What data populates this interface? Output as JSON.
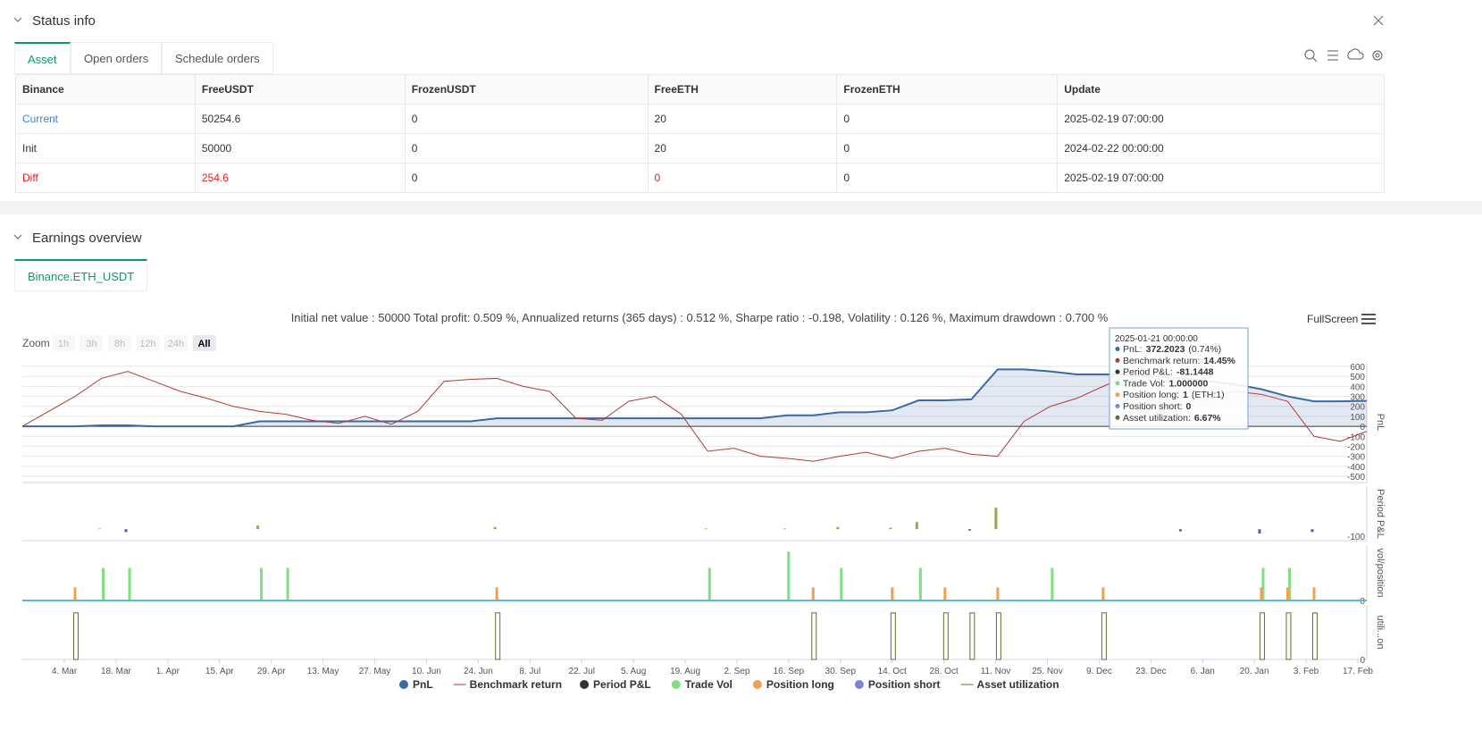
{
  "header": {
    "title": "Status info"
  },
  "tabs": [
    "Asset",
    "Open orders",
    "Schedule orders"
  ],
  "table": {
    "columns": [
      "Binance",
      "FreeUSDT",
      "FrozenUSDT",
      "FreeETH",
      "FrozenETH",
      "Update"
    ],
    "rows": [
      [
        "Current",
        "50254.6",
        "0",
        "20",
        "0",
        "2025-02-19 07:00:00"
      ],
      [
        "Init",
        "50000",
        "0",
        "20",
        "0",
        "2024-02-22 00:00:00"
      ],
      [
        "Diff",
        "254.6",
        "0",
        "0",
        "0",
        "2025-02-19 07:00:00"
      ]
    ]
  },
  "earnings": {
    "title": "Earnings overview",
    "tab": "Binance.ETH_USDT",
    "summary": "Initial net value : 50000 Total profit: 0.509 %, Annualized returns (365 days) : 0.512 %, Sharpe ratio : -0.198, Volatility : 0.126 %, Maximum drawdown : 0.700 %",
    "fullscreen": "FullScreen",
    "zoom": {
      "label": "Zoom",
      "buttons": [
        "1h",
        "3h",
        "8h",
        "12h",
        "24h",
        "All"
      ]
    },
    "tooltip": {
      "date": "2025-01-21 00:00:00",
      "rows": [
        [
          "PnL:",
          "372.2023",
          "(0.74%)"
        ],
        [
          "Benchmark return:",
          "14.45%",
          ""
        ],
        [
          "Period P&L:",
          "-81.1448",
          ""
        ],
        [
          "Trade Vol:",
          "1.000000",
          ""
        ],
        [
          "Position long:",
          "1",
          "(ETH:1)"
        ],
        [
          "Position short:",
          "0",
          ""
        ],
        [
          "Asset utilization:",
          "6.67%",
          ""
        ]
      ]
    }
  },
  "chart_data": {
    "type": "line",
    "xticks": [
      "4. Mar",
      "18. Mar",
      "1. Apr",
      "15. Apr",
      "29. Apr",
      "13. May",
      "27. May",
      "10. Jun",
      "24. Jun",
      "8. Jul",
      "22. Jul",
      "5. Aug",
      "19. Aug",
      "2. Sep",
      "16. Sep",
      "30. Sep",
      "14. Oct",
      "28. Oct",
      "11. Nov",
      "25. Nov",
      "9. Dec",
      "23. Dec",
      "6. Jan",
      "20. Jan",
      "3. Feb",
      "17. Feb"
    ],
    "panels": [
      {
        "title": "PnL",
        "ylim": [
          -563,
          645
        ],
        "yticks": [
          600,
          500,
          400,
          300,
          200,
          100,
          0,
          -100,
          -200,
          -300,
          -400,
          -500
        ]
      },
      {
        "title": "Period P&L",
        "ylim": [
          -160,
          590
        ],
        "yticks": [
          -100
        ]
      },
      {
        "title": "vol/position",
        "ylim": [
          0,
          1.7
        ],
        "yticks": [
          0
        ]
      },
      {
        "title": "utili...on",
        "ylim": [
          0,
          7.8
        ],
        "yticks": [
          0
        ]
      }
    ],
    "series": [
      {
        "name": "PnL",
        "color": "#3a6aa5",
        "panel": 0,
        "values": [
          0,
          0,
          0,
          10,
          10,
          0,
          0,
          0,
          0,
          50,
          50,
          50,
          50,
          50,
          50,
          50,
          50,
          50,
          80,
          80,
          80,
          80,
          80,
          80,
          80,
          80,
          80,
          80,
          80,
          110,
          110,
          140,
          140,
          160,
          260,
          260,
          270,
          570,
          570,
          550,
          520,
          520,
          520,
          500,
          480,
          450,
          420,
          372,
          300,
          250,
          250,
          255
        ]
      },
      {
        "name": "Benchmark return",
        "color": "#b03a3a",
        "panel": 0,
        "values": [
          0,
          150,
          300,
          480,
          550,
          450,
          350,
          280,
          200,
          150,
          120,
          60,
          30,
          100,
          20,
          150,
          450,
          470,
          480,
          400,
          350,
          80,
          60,
          250,
          300,
          120,
          -250,
          -220,
          -300,
          -320,
          -350,
          -300,
          -260,
          -320,
          -250,
          -220,
          -280,
          -300,
          50,
          200,
          280,
          400,
          520,
          480,
          400,
          300,
          350,
          320,
          250,
          -100,
          -150,
          -50
        ]
      },
      {
        "name": "Period P&L",
        "color": "#333333",
        "panel": 1,
        "values": [
          0,
          0,
          0,
          10,
          -40,
          0,
          0,
          0,
          0,
          50,
          0,
          0,
          0,
          0,
          0,
          0,
          0,
          0,
          30,
          0,
          0,
          0,
          0,
          0,
          0,
          0,
          10,
          0,
          0,
          10,
          0,
          30,
          0,
          20,
          100,
          0,
          -20,
          300,
          0,
          0,
          0,
          0,
          0,
          0,
          -30,
          0,
          0,
          -60,
          0,
          -40,
          0,
          0
        ]
      },
      {
        "name": "Trade Vol",
        "color": "#7ee07e",
        "panel": 2,
        "values": [
          0,
          0,
          0,
          1,
          1,
          0,
          0,
          0,
          0,
          1,
          1,
          0,
          0,
          0,
          0,
          0,
          0,
          0,
          0,
          0,
          0,
          0,
          0,
          0,
          0,
          0,
          1,
          0,
          0,
          1.5,
          0,
          1,
          0,
          0,
          1,
          0,
          0,
          0,
          0,
          1,
          0,
          0,
          0,
          0,
          0,
          0,
          0,
          1,
          1,
          0,
          0,
          0
        ]
      },
      {
        "name": "Position long",
        "color": "#f0a050",
        "panel": 2,
        "values": [
          0,
          0,
          0.4,
          0,
          0,
          0,
          0,
          0,
          0,
          0,
          0,
          0,
          0,
          0,
          0,
          0,
          0,
          0,
          0.4,
          0,
          0,
          0,
          0,
          0,
          0,
          0,
          0,
          0,
          0,
          0,
          0.4,
          0,
          0,
          0.4,
          0,
          0.4,
          0,
          0.4,
          0,
          0,
          0,
          0.4,
          0,
          0,
          0,
          0,
          0,
          0.4,
          0.4,
          0.4,
          0,
          0
        ]
      },
      {
        "name": "Position short",
        "color": "#8080e0",
        "panel": 2,
        "values": [
          0,
          0,
          0,
          0,
          0,
          0,
          0,
          0,
          0,
          0,
          0,
          0,
          0,
          0,
          0,
          0,
          0,
          0,
          0,
          0,
          0,
          0,
          0,
          0,
          0,
          0,
          0,
          0,
          0,
          0,
          0,
          0,
          0,
          0,
          0,
          0,
          0,
          0,
          0,
          0,
          0,
          0,
          0,
          0,
          0,
          0,
          0,
          0,
          0,
          0,
          0,
          0
        ]
      },
      {
        "name": "Asset utilization",
        "color": "#6b6b2a",
        "panel": 3,
        "values": [
          0,
          0,
          6.67,
          0,
          0,
          0,
          0,
          0,
          0,
          0,
          0,
          0,
          0,
          0,
          0,
          0,
          0,
          0,
          6.67,
          0,
          0,
          0,
          0,
          0,
          0,
          0,
          0,
          0,
          0,
          0,
          6.67,
          0,
          0,
          6.67,
          0,
          6.67,
          6.67,
          6.67,
          0,
          0,
          0,
          6.67,
          0,
          0,
          0,
          0,
          0,
          6.67,
          6.67,
          6.67,
          0,
          0
        ]
      }
    ]
  }
}
